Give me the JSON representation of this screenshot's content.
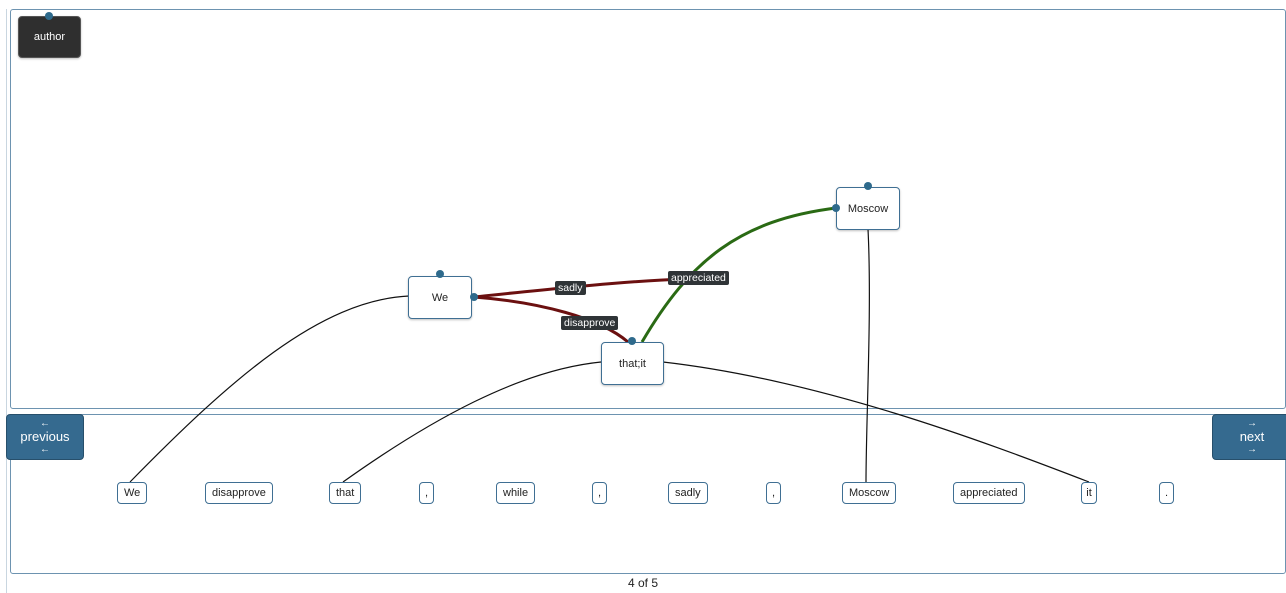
{
  "graph": {
    "nodes": {
      "author": "author",
      "we": "We",
      "that_it": "that;it",
      "moscow": "Moscow"
    },
    "edge_labels": {
      "sadly": "sadly",
      "appreciated": "appreciated",
      "disapprove": "disapprove"
    },
    "edge_colors": {
      "dark_red": "#6b1010",
      "green": "#2a6a14",
      "anchor": "#111111"
    }
  },
  "tokens": [
    "We",
    "disapprove",
    "that",
    ",",
    "while",
    ",",
    "sadly",
    ",",
    "Moscow",
    "appreciated",
    "it",
    "."
  ],
  "nav": {
    "previous": {
      "arrow": "←",
      "label": "previous"
    },
    "next": {
      "arrow": "→",
      "label": "next"
    }
  },
  "pager": "4 of 5"
}
